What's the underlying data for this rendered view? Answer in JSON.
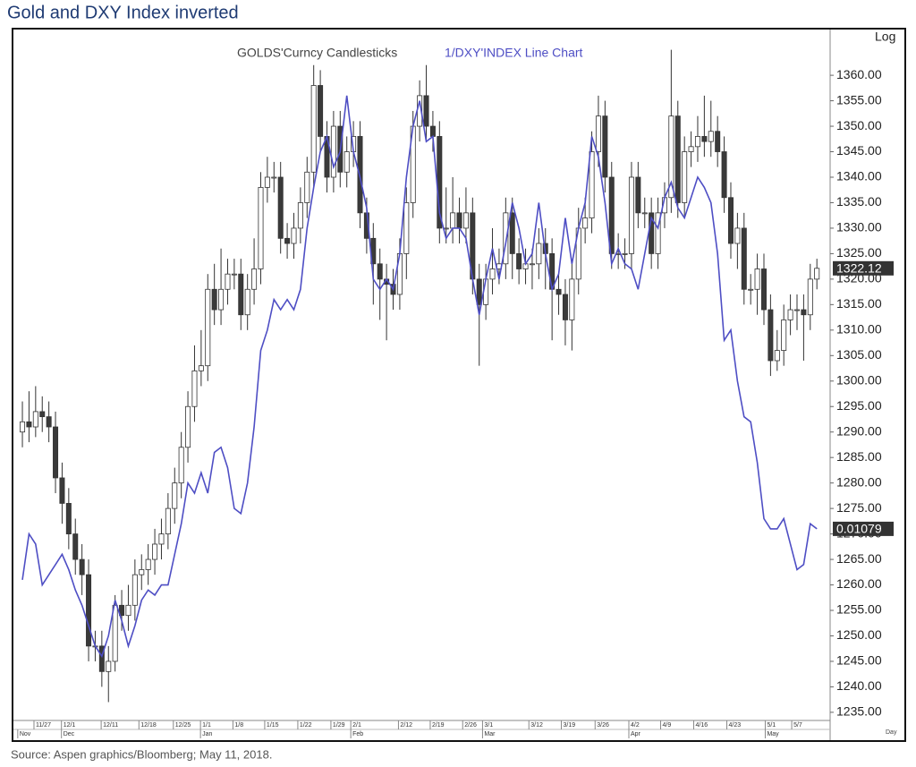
{
  "chart_data": {
    "type": "candlestick",
    "title": "Gold and DXY Index inverted",
    "source": "Source: Aspen graphics/Bloomberg; May 11, 2018.",
    "scale_label": "Log",
    "period_label": "Day",
    "categories": [
      null,
      null,
      null,
      null,
      null,
      null,
      null,
      null,
      null,
      null,
      null,
      null,
      null,
      null,
      null,
      null,
      null,
      null,
      null,
      null,
      null,
      null,
      null,
      null,
      null,
      null,
      null,
      null,
      null,
      null,
      null,
      null,
      null,
      null,
      null,
      null,
      null,
      null,
      null,
      null,
      null,
      null,
      null,
      null,
      null,
      null,
      null,
      null,
      null,
      null,
      null,
      null,
      null,
      null,
      null,
      null,
      null,
      null,
      null,
      null,
      null,
      null,
      null,
      null,
      null,
      null,
      null,
      null,
      null,
      null,
      null,
      null,
      null,
      null,
      null,
      null,
      null,
      null,
      null,
      null,
      null,
      null,
      null,
      null,
      null,
      null,
      null,
      null,
      null,
      null,
      null,
      null,
      null,
      null,
      null,
      null,
      null,
      null,
      null,
      null,
      null,
      null,
      null,
      null,
      null,
      null,
      null,
      null,
      null,
      null,
      null,
      null,
      null,
      null,
      null,
      null,
      null,
      null,
      null,
      null,
      null
    ],
    "xlim": [
      -0.95,
      122
    ],
    "xticks": [
      {
        "value": 1.75,
        "label": "11/27"
      },
      {
        "value": 5.9,
        "label": "12/1"
      },
      {
        "value": 11.9,
        "label": "12/11"
      },
      {
        "value": 17.6,
        "label": "12/18"
      },
      {
        "value": 22.8,
        "label": "12/25"
      },
      {
        "value": 26.9,
        "label": "1/1"
      },
      {
        "value": 31.8,
        "label": "1/8"
      },
      {
        "value": 36.6,
        "label": "1/15"
      },
      {
        "value": 41.6,
        "label": "1/22"
      },
      {
        "value": 46.6,
        "label": "1/29"
      },
      {
        "value": 49.6,
        "label": "2/1"
      },
      {
        "value": 56.8,
        "label": "2/12"
      },
      {
        "value": 61.6,
        "label": "2/19"
      },
      {
        "value": 66.5,
        "label": "2/26"
      },
      {
        "value": 69.5,
        "label": "3/1"
      },
      {
        "value": 76.5,
        "label": "3/12"
      },
      {
        "value": 81.4,
        "label": "3/19"
      },
      {
        "value": 86.5,
        "label": "3/26"
      },
      {
        "value": 91.6,
        "label": "4/2"
      },
      {
        "value": 96.4,
        "label": "4/9"
      },
      {
        "value": 101.4,
        "label": "4/16"
      },
      {
        "value": 106.4,
        "label": "4/23"
      },
      {
        "value": 112.2,
        "label": "5/1"
      },
      {
        "value": 116.2,
        "label": "5/7"
      }
    ],
    "month_ticks": [
      {
        "value": -0.7,
        "label": "Nov"
      },
      {
        "value": 5.9,
        "label": "Dec"
      },
      {
        "value": 26.9,
        "label": "Jan"
      },
      {
        "value": 49.6,
        "label": "Feb"
      },
      {
        "value": 69.5,
        "label": "Mar"
      },
      {
        "value": 91.6,
        "label": "Apr"
      },
      {
        "value": 112.2,
        "label": "May"
      }
    ],
    "ylim": [
      1233.4,
      1368.8
    ],
    "yticks": [
      {
        "value": 1235,
        "label": "1235.00"
      },
      {
        "value": 1240,
        "label": "1240.00"
      },
      {
        "value": 1245,
        "label": "1245.00"
      },
      {
        "value": 1250,
        "label": "1250.00"
      },
      {
        "value": 1255,
        "label": "1255.00"
      },
      {
        "value": 1260,
        "label": "1260.00"
      },
      {
        "value": 1265,
        "label": "1265.00"
      },
      {
        "value": 1270,
        "label": "1270.00"
      },
      {
        "value": 1275,
        "label": "1275.00"
      },
      {
        "value": 1280,
        "label": "1280.00"
      },
      {
        "value": 1285,
        "label": "1285.00"
      },
      {
        "value": 1290,
        "label": "1290.00"
      },
      {
        "value": 1295,
        "label": "1295.00"
      },
      {
        "value": 1300,
        "label": "1300.00"
      },
      {
        "value": 1305,
        "label": "1305.00"
      },
      {
        "value": 1310,
        "label": "1310.00"
      },
      {
        "value": 1315,
        "label": "1315.00"
      },
      {
        "value": 1320,
        "label": "1320.00"
      },
      {
        "value": 1325,
        "label": "1325.00"
      },
      {
        "value": 1330,
        "label": "1330.00"
      },
      {
        "value": 1335,
        "label": "1335.00"
      },
      {
        "value": 1340,
        "label": "1340.00"
      },
      {
        "value": 1345,
        "label": "1345.00"
      },
      {
        "value": 1350,
        "label": "1350.00"
      },
      {
        "value": 1355,
        "label": "1355.00"
      },
      {
        "value": 1360,
        "label": "1360.00"
      }
    ],
    "grid": false,
    "series": [
      {
        "name": "GOLDS'Curncy Candlesticks",
        "type": "candlestick",
        "color": "#555555",
        "up_color": "#ffffff",
        "down_color": "#3a3a3a",
        "last_value_label": "1322.12",
        "open": [
          1290,
          1292,
          1291,
          1294,
          1293,
          1291,
          1281,
          1276,
          1270,
          1265,
          1262,
          1248,
          1248,
          1243,
          1245,
          1256,
          1254,
          1256,
          1262,
          1263,
          1265,
          1268,
          1270,
          1275,
          1280,
          1287,
          1295,
          1302,
          1303,
          1318,
          1314,
          1318,
          1321,
          1321,
          1313,
          1318,
          1322,
          1338,
          1340,
          1340,
          1328,
          1327,
          1330,
          1335,
          1341,
          1358,
          1348,
          1340,
          1350,
          1341,
          1345,
          1348,
          1333,
          1328,
          1323,
          1320,
          1319,
          1317,
          1325,
          1335,
          1350,
          1356,
          1350,
          1348,
          1330,
          1330,
          1333,
          1330,
          1333,
          1320,
          1315,
          1320,
          1322,
          1323,
          1333,
          1325,
          1322,
          1323,
          1323,
          1327,
          1325,
          1318,
          1317,
          1312,
          1320,
          1330,
          1332,
          1345,
          1352,
          1340,
          1325,
          1325,
          1325,
          1340,
          1333,
          1333,
          1325,
          1333,
          1336,
          1352,
          1335,
          1345,
          1346,
          1348,
          1347,
          1349,
          1345,
          1336,
          1327,
          1330,
          1318,
          1318,
          1322,
          1314,
          1304,
          1306,
          1312,
          1314,
          1314,
          1313,
          1320
        ],
        "high": [
          1296,
          1298,
          1299,
          1297,
          1296,
          1294,
          1284,
          1279,
          1273,
          1268,
          1265,
          1251,
          1251,
          1248,
          1258,
          1259,
          1260,
          1265,
          1266,
          1268,
          1271,
          1273,
          1278,
          1283,
          1290,
          1298,
          1307,
          1310,
          1321,
          1323,
          1326,
          1324,
          1324,
          1324,
          1321,
          1328,
          1341,
          1344,
          1343,
          1343,
          1331,
          1333,
          1338,
          1344,
          1362,
          1361,
          1351,
          1353,
          1353,
          1348,
          1351,
          1351,
          1336,
          1331,
          1326,
          1323,
          1322,
          1328,
          1338,
          1353,
          1359,
          1362,
          1353,
          1351,
          1338,
          1340,
          1336,
          1338,
          1336,
          1323,
          1323,
          1330,
          1326,
          1336,
          1336,
          1328,
          1326,
          1326,
          1330,
          1330,
          1328,
          1321,
          1320,
          1323,
          1334,
          1336,
          1349,
          1356,
          1355,
          1343,
          1329,
          1328,
          1343,
          1343,
          1336,
          1336,
          1336,
          1339,
          1365,
          1355,
          1348,
          1349,
          1352,
          1356,
          1355,
          1352,
          1348,
          1339,
          1333,
          1333,
          1321,
          1325,
          1325,
          1317,
          1310,
          1315,
          1317,
          1317,
          1317,
          1323,
          1324
        ],
        "low": [
          1287,
          1288,
          1289,
          1290,
          1288,
          1278,
          1272,
          1267,
          1262,
          1258,
          1245,
          1245,
          1240,
          1237,
          1243,
          1251,
          1251,
          1253,
          1259,
          1260,
          1262,
          1265,
          1267,
          1272,
          1277,
          1284,
          1292,
          1299,
          1300,
          1311,
          1311,
          1315,
          1318,
          1310,
          1310,
          1315,
          1319,
          1335,
          1337,
          1325,
          1324,
          1324,
          1327,
          1332,
          1338,
          1345,
          1337,
          1337,
          1338,
          1338,
          1342,
          1330,
          1325,
          1315,
          1312,
          1308,
          1314,
          1314,
          1320,
          1332,
          1347,
          1347,
          1345,
          1327,
          1327,
          1327,
          1327,
          1327,
          1317,
          1303,
          1312,
          1317,
          1319,
          1320,
          1320,
          1319,
          1319,
          1318,
          1320,
          1318,
          1308,
          1313,
          1307,
          1306,
          1317,
          1327,
          1329,
          1342,
          1337,
          1322,
          1322,
          1322,
          1322,
          1330,
          1330,
          1322,
          1322,
          1330,
          1333,
          1332,
          1332,
          1342,
          1343,
          1344,
          1344,
          1342,
          1333,
          1324,
          1322,
          1315,
          1315,
          1313,
          1311,
          1301,
          1302,
          1303,
          1309,
          1310,
          1304,
          1310,
          1318
        ],
        "close": [
          1292,
          1291,
          1294,
          1293,
          1291,
          1281,
          1276,
          1270,
          1265,
          1262,
          1248,
          1248,
          1243,
          1245,
          1256,
          1254,
          1256,
          1262,
          1263,
          1265,
          1268,
          1270,
          1275,
          1280,
          1287,
          1295,
          1302,
          1303,
          1318,
          1314,
          1318,
          1321,
          1321,
          1313,
          1318,
          1322,
          1338,
          1340,
          1340,
          1328,
          1327,
          1330,
          1335,
          1341,
          1358,
          1348,
          1340,
          1350,
          1341,
          1345,
          1348,
          1333,
          1328,
          1323,
          1320,
          1319,
          1317,
          1325,
          1335,
          1350,
          1356,
          1350,
          1348,
          1330,
          1330,
          1333,
          1330,
          1333,
          1320,
          1315,
          1320,
          1322,
          1323,
          1333,
          1325,
          1322,
          1323,
          1323,
          1327,
          1325,
          1318,
          1317,
          1312,
          1320,
          1330,
          1332,
          1345,
          1352,
          1340,
          1325,
          1325,
          1325,
          1340,
          1333,
          1333,
          1325,
          1333,
          1336,
          1352,
          1335,
          1345,
          1346,
          1348,
          1347,
          1349,
          1345,
          1336,
          1327,
          1330,
          1318,
          1318,
          1322,
          1314,
          1304,
          1306,
          1312,
          1314,
          1314,
          1313,
          1320,
          1322.12
        ]
      },
      {
        "name": "1/DXY'INDEX Line Chart",
        "type": "line",
        "color": "#4e4ec4",
        "annotation": "0.01079",
        "values": [
          1261,
          1270,
          1268,
          1260,
          1262,
          1264,
          1266,
          1263,
          1259,
          1256,
          1252,
          1248,
          1246,
          1250,
          1257,
          1253,
          1248,
          1252,
          1257,
          1259,
          1258,
          1260,
          1260,
          1266,
          1272,
          1280,
          1278,
          1282,
          1278,
          1286,
          1287,
          1283,
          1275,
          1274,
          1280,
          1291,
          1306,
          1310,
          1316,
          1314,
          1316,
          1314,
          1318,
          1330,
          1338,
          1345,
          1348,
          1342,
          1345,
          1356,
          1345,
          1340,
          1334,
          1320,
          1318,
          1320,
          1318,
          1325,
          1340,
          1350,
          1355,
          1347,
          1348,
          1333,
          1328,
          1330,
          1330,
          1328,
          1320,
          1313,
          1320,
          1326,
          1320,
          1327,
          1335,
          1330,
          1323,
          1325,
          1335,
          1325,
          1318,
          1321,
          1332,
          1323,
          1330,
          1335,
          1348,
          1344,
          1335,
          1323,
          1326,
          1323,
          1322,
          1318,
          1325,
          1332,
          1330,
          1336,
          1339,
          1334,
          1332,
          1336,
          1340,
          1338,
          1335,
          1325,
          1308,
          1310,
          1300,
          1293,
          1292,
          1284,
          1273,
          1271,
          1271,
          1273,
          1268,
          1263,
          1264,
          1272,
          1271
        ]
      }
    ]
  }
}
